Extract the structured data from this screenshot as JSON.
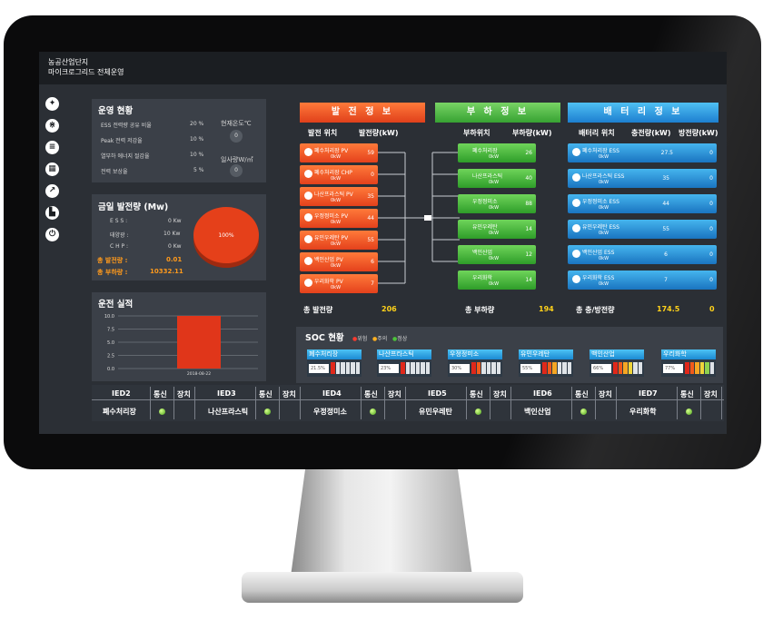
{
  "header": {
    "line1": "농공산업단지",
    "line2": "마이크로그리드 전체운영"
  },
  "side_icons": [
    "gamepad-icon",
    "network-icon",
    "sliders-icon",
    "grid-icon",
    "chart-icon",
    "factory-icon",
    "power-icon"
  ],
  "ops": {
    "title": "운영 현황",
    "items": [
      {
        "label": "ESS 전력량 공유 비율",
        "value": "20 %"
      },
      {
        "label": "Peak 전력 저감율",
        "value": "10 %"
      },
      {
        "label": "열부하 에너지 절감율",
        "value": "10 %"
      },
      {
        "label": "전력 보상율",
        "value": "5 %"
      }
    ],
    "temp_label": "현재온도℃",
    "temp_value": "0",
    "solar_label": "일사량W/㎡",
    "solar_value": "0"
  },
  "today": {
    "title": "금일 발전량 (Mw)",
    "items": [
      {
        "label": "E S S :",
        "value": "0 Kw"
      },
      {
        "label": "태양광 :",
        "value": "10 Kw"
      },
      {
        "label": "C H P :",
        "value": "0 Kw"
      }
    ],
    "total_gen_label": "총 발전량 :",
    "total_gen_value": "0.01",
    "total_load_label": "총 부하량 :",
    "total_load_value": "10332.11",
    "pie_label": "100%"
  },
  "record": {
    "title": "운전 실적",
    "yticks": [
      "10.0",
      "7.5",
      "5.0",
      "2.5",
      "0.0"
    ],
    "xlabel": "2018-08-22"
  },
  "chart_data": {
    "type": "bar",
    "title": "운전 실적",
    "categories": [
      "2018-08-22"
    ],
    "values": [
      10
    ],
    "ylim": [
      0,
      10
    ]
  },
  "gen": {
    "header": "발 전 정 보",
    "col1": "발전 위치",
    "col2": "발전량(kW)",
    "rows": [
      {
        "name": "폐수처리장 PV",
        "value": "59"
      },
      {
        "name": "폐수처리장 CHP",
        "value": "0"
      },
      {
        "name": "나산프라스틱 PV",
        "value": "35"
      },
      {
        "name": "우정정미소 PV",
        "value": "44"
      },
      {
        "name": "유민우레탄 PV",
        "value": "55"
      },
      {
        "name": "백인산업 PV",
        "value": "6"
      },
      {
        "name": "우리화학 PV",
        "value": "7"
      }
    ],
    "unit": "0kW",
    "total_label": "총 발전량",
    "total_value": "206"
  },
  "load": {
    "header": "부 하 정 보",
    "col1": "부하위치",
    "col2": "부하량(kW)",
    "rows": [
      {
        "name": "폐수처리장",
        "value": "26"
      },
      {
        "name": "나산프라스틱",
        "value": "40"
      },
      {
        "name": "우정정미소",
        "value": "88"
      },
      {
        "name": "유민우레탄",
        "value": "14"
      },
      {
        "name": "백인산업",
        "value": "12"
      },
      {
        "name": "우리화학",
        "value": "14"
      }
    ],
    "unit": "0kW",
    "total_label": "총 부하량",
    "total_value": "194"
  },
  "bat": {
    "header": "배 터 리 정 보",
    "col1": "배터리 위치",
    "col2": "충전량(kW)",
    "col3": "방전량(kW)",
    "rows": [
      {
        "name": "폐수처리장 ESS",
        "charge": "27.5",
        "discharge": "0"
      },
      {
        "name": "나산프라스틱 ESS",
        "charge": "35",
        "discharge": "0"
      },
      {
        "name": "우정정미소 ESS",
        "charge": "44",
        "discharge": "0"
      },
      {
        "name": "유민우레탄 ESS",
        "charge": "55",
        "discharge": "0"
      },
      {
        "name": "백인산업 ESS",
        "charge": "6",
        "discharge": "0"
      },
      {
        "name": "우리화학 ESS",
        "charge": "7",
        "discharge": "0"
      }
    ],
    "unit": "0kW",
    "total_label": "총 충/방전량",
    "total_charge": "174.5",
    "total_discharge": "0"
  },
  "soc": {
    "title": "SOC 현황",
    "legend": [
      "위험",
      "주의",
      "정상"
    ],
    "items": [
      {
        "name": "폐수처리장",
        "pct": "21.5%",
        "level": 0.215
      },
      {
        "name": "나산프라스틱",
        "pct": "23%",
        "level": 0.23
      },
      {
        "name": "우정정미소",
        "pct": "30%",
        "level": 0.3
      },
      {
        "name": "유민우레탄",
        "pct": "55%",
        "level": 0.55
      },
      {
        "name": "백인산업",
        "pct": "66%",
        "level": 0.66
      },
      {
        "name": "우리화학",
        "pct": "77%",
        "level": 0.77
      }
    ]
  },
  "ied": {
    "headers": [
      "IED2",
      "IED3",
      "IED4",
      "IED5",
      "IED6",
      "IED7"
    ],
    "comm": "통신",
    "dev": "장치",
    "names": [
      "폐수처리장",
      "나산프라스틱",
      "우정정미소",
      "유민우레탄",
      "백인산업",
      "우리화학"
    ]
  },
  "colors": {
    "gen": "#e4411c",
    "load": "#2e9d29",
    "bat": "#1a74c0",
    "accent": "#ff9a1c",
    "total": "#ffd21a"
  }
}
